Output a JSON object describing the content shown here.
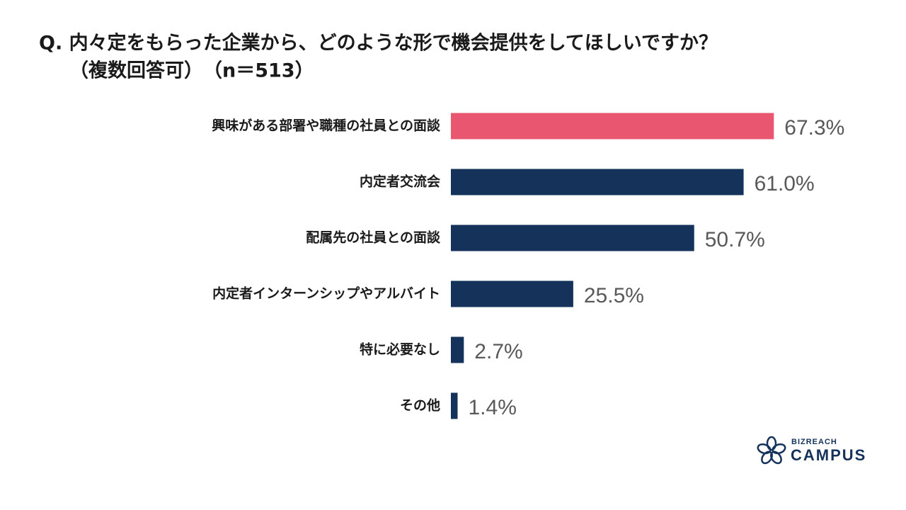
{
  "chart_data": {
    "type": "bar",
    "orientation": "horizontal",
    "title": "Q. 内々定をもらった企業から、どのような形で機会提供をしてほしいですか？",
    "subtitle": "（複数回答可）　（n＝513）",
    "categories": [
      "興味がある部署や職種の社員との面談",
      "内定者交流会",
      "配属先の社員との面談",
      "内定者インターンシップやアルバイト",
      "特に必要なし",
      "その他"
    ],
    "values": [
      67.3,
      61.0,
      50.7,
      25.5,
      2.7,
      1.4
    ],
    "value_labels": [
      "67.3%",
      "61.0%",
      "50.7%",
      "25.5%",
      "2.7%",
      "1.4%"
    ],
    "colors": [
      "#e8566f",
      "#14325a",
      "#14325a",
      "#14325a",
      "#14325a",
      "#14325a"
    ],
    "brand": {
      "top": "BIZREACH",
      "bottom": "CAMPUS"
    }
  }
}
